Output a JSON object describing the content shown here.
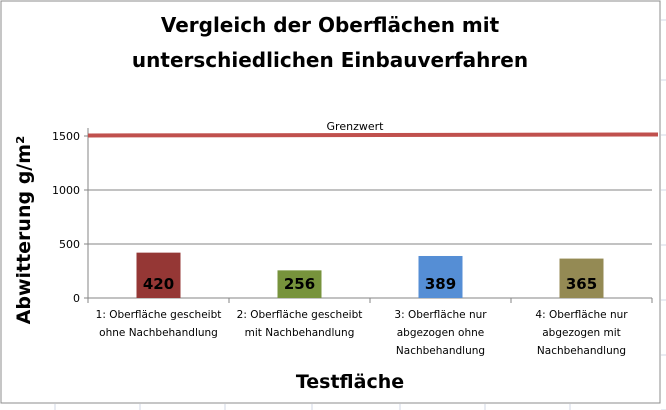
{
  "chart_data": {
    "type": "bar",
    "title_lines": [
      "Vergleich der Oberflächen mit",
      "unterschiedlichen Einbauverfahren"
    ],
    "xlabel": "Testfläche",
    "ylabel": "Abwitterung g/m²",
    "ylim": [
      0,
      1500
    ],
    "yticks": [
      "0",
      "500",
      "1000",
      "1500"
    ],
    "grid": true,
    "categories": [
      [
        "1: Oberfläche gescheibt",
        "ohne Nachbehandlung"
      ],
      [
        "2: Oberfläche gescheibt",
        "mit Nachbehandlung"
      ],
      [
        "3: Oberfläche nur",
        "abgezogen ohne",
        "Nachbehandlung"
      ],
      [
        "4: Oberfläche nur",
        "abgezogen mit",
        "Nachbehandlung"
      ]
    ],
    "values": [
      420,
      256,
      389,
      365
    ],
    "data_labels": [
      "420",
      "256",
      "389",
      "365"
    ],
    "bar_colors": [
      "#953735",
      "#77933c",
      "#558ed5",
      "#948a54"
    ],
    "reference_line": {
      "label": "Grenzwert",
      "value": 1500,
      "color": "#c0504d"
    }
  }
}
